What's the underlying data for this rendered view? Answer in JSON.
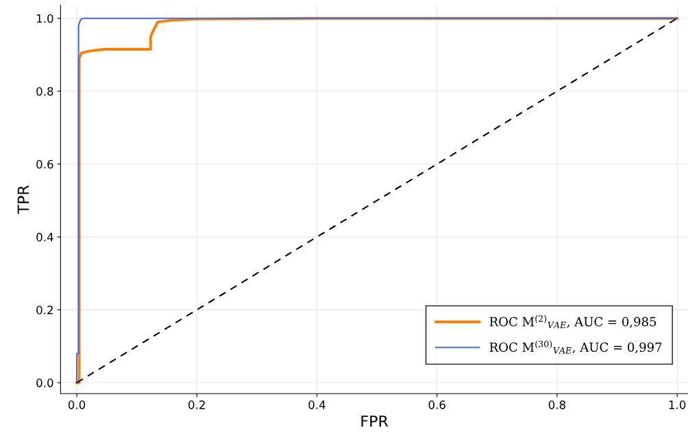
{
  "chart_data": {
    "type": "line",
    "xlabel": "FPR",
    "ylabel": "TPR",
    "xlim": [
      -0.027,
      1.018
    ],
    "ylim": [
      -0.03,
      1.036
    ],
    "xticks": [
      {
        "value": 0,
        "label": "0.0"
      },
      {
        "value": 0.2,
        "label": "0.2"
      },
      {
        "value": 0.4,
        "label": "0.4"
      },
      {
        "value": 0.6,
        "label": "0.6"
      },
      {
        "value": 0.8,
        "label": "0.8"
      },
      {
        "value": 1,
        "label": "1.0"
      }
    ],
    "yticks": [
      {
        "value": 0,
        "label": "0.0"
      },
      {
        "value": 0.2,
        "label": "0.2"
      },
      {
        "value": 0.4,
        "label": "0.4"
      },
      {
        "value": 0.6,
        "label": "0.6"
      },
      {
        "value": 0.8,
        "label": "0.8"
      },
      {
        "value": 1,
        "label": "1.0"
      }
    ],
    "grid": true,
    "legend": "bottom right",
    "marker": "none",
    "series": [
      {
        "name": "ROC M$^{(2)}$$_{VAE}$, AUC = 0,985",
        "color": "#ff7f00",
        "line_style": "solid",
        "x": [
          0,
          0.004,
          0.004,
          0.008,
          0.02,
          0.045,
          0.123,
          0.123,
          0.13,
          0.135,
          0.16,
          0.2,
          0.39,
          1
        ],
        "values": [
          0,
          0,
          0.89,
          0.905,
          0.91,
          0.915,
          0.915,
          0.95,
          0.975,
          0.99,
          0.995,
          0.998,
          1,
          1
        ]
      },
      {
        "name": "ROC M$^{(30)}$$_{VAE}$, AUC = 0,997",
        "color": "#4169e1",
        "line_style": "solid",
        "x": [
          0,
          0,
          0.003,
          0.003,
          0.006,
          0.01,
          1
        ],
        "values": [
          0,
          0.08,
          0.08,
          0.98,
          0.995,
          1,
          1
        ]
      },
      {
        "color": "#000000",
        "line_style": "dashed",
        "x": [
          0,
          1
        ],
        "values": [
          0,
          1
        ]
      }
    ]
  }
}
